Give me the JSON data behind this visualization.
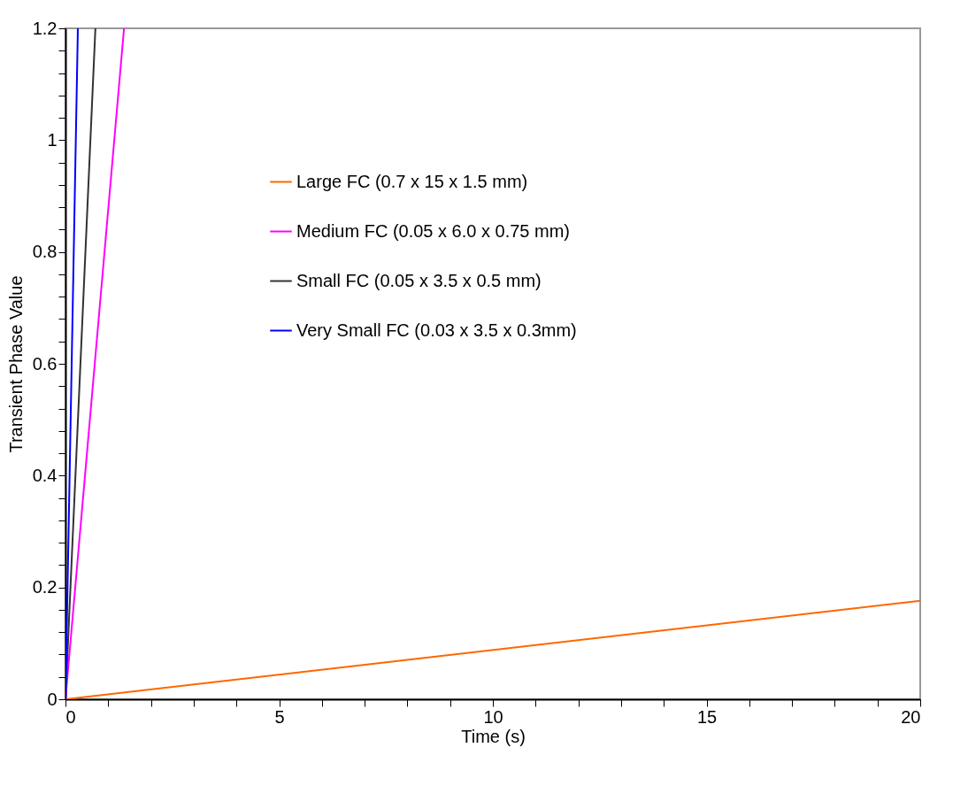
{
  "chart_data": {
    "type": "line",
    "xlabel": "Time (s)",
    "ylabel": "Transient Phase Value",
    "xlim": [
      0,
      20
    ],
    "ylim": [
      0,
      1.2
    ],
    "xticks": [
      0,
      {
        "value": 1,
        "label": null
      },
      {
        "value": 2,
        "label": null
      },
      {
        "value": 3,
        "label": null
      },
      {
        "value": 4,
        "label": null
      },
      5,
      {
        "value": 6,
        "label": null
      },
      {
        "value": 7,
        "label": null
      },
      {
        "value": 8,
        "label": null
      },
      {
        "value": 9,
        "label": null
      },
      10,
      {
        "value": 11,
        "label": null
      },
      {
        "value": 12,
        "label": null
      },
      {
        "value": 13,
        "label": null
      },
      {
        "value": 14,
        "label": null
      },
      15,
      {
        "value": 16,
        "label": null
      },
      {
        "value": 17,
        "label": null
      },
      {
        "value": 18,
        "label": null
      },
      {
        "value": 19,
        "label": null
      },
      20
    ],
    "yticks": [
      0,
      {
        "value": 0.04,
        "label": null
      },
      {
        "value": 0.08,
        "label": null
      },
      {
        "value": 0.12,
        "label": null
      },
      {
        "value": 0.16,
        "label": null
      },
      0.2,
      {
        "value": 0.24,
        "label": null
      },
      {
        "value": 0.28,
        "label": null
      },
      {
        "value": 0.32,
        "label": null
      },
      {
        "value": 0.36,
        "label": null
      },
      0.4,
      {
        "value": 0.44,
        "label": null
      },
      {
        "value": 0.48,
        "label": null
      },
      {
        "value": 0.52,
        "label": null
      },
      {
        "value": 0.56,
        "label": null
      },
      0.6,
      {
        "value": 0.64,
        "label": null
      },
      {
        "value": 0.68,
        "label": null
      },
      {
        "value": 0.72,
        "label": null
      },
      {
        "value": 0.76,
        "label": null
      },
      0.8,
      {
        "value": 0.84,
        "label": null
      },
      {
        "value": 0.88,
        "label": null
      },
      {
        "value": 0.92,
        "label": null
      },
      {
        "value": 0.96,
        "label": null
      },
      1,
      {
        "value": 1.04,
        "label": null
      },
      {
        "value": 1.08,
        "label": null
      },
      {
        "value": 1.12,
        "label": null
      },
      {
        "value": 1.16,
        "label": null
      },
      1.2
    ],
    "grid": false,
    "legend": "top left",
    "marker": "none",
    "line_style": "solid",
    "series": [
      {
        "name": "Large FC (0.7 x 15 x 1.5 mm)",
        "color": "#ff6600",
        "x": [
          0,
          20
        ],
        "values": [
          0,
          0.176
        ]
      },
      {
        "name": "Medium FC (0.05 x 6.0 x 0.75 mm)",
        "color": "#ff00ff",
        "x": [
          0,
          1.37
        ],
        "values": [
          0,
          1.2
        ]
      },
      {
        "name": "Small FC (0.05 x 3.5 x 0.5 mm)",
        "color": "#333333",
        "x": [
          0,
          0.7
        ],
        "values": [
          0,
          1.2
        ]
      },
      {
        "name": "Very Small FC (0.03 x 3.5 x 0.3mm)",
        "color": "#0000ff",
        "x": [
          0,
          0.29
        ],
        "values": [
          0,
          1.2
        ]
      }
    ]
  }
}
